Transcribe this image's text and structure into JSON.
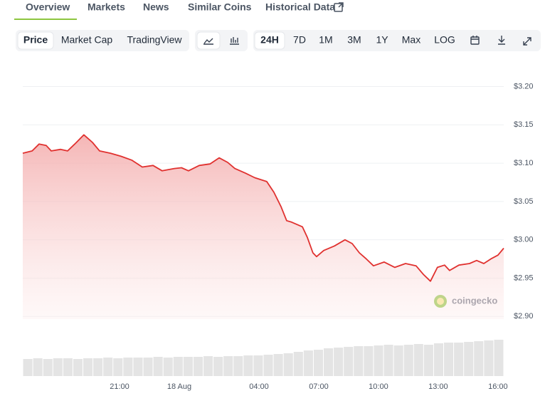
{
  "tabs": [
    "Overview",
    "Markets",
    "News",
    "Similar Coins",
    "Historical Data"
  ],
  "chart_modes": [
    "Price",
    "Market Cap",
    "TradingView"
  ],
  "ranges": [
    "24H",
    "7D",
    "1M",
    "3M",
    "1Y",
    "Max",
    "LOG"
  ],
  "watermark": "coingecko",
  "chart_data": [
    {
      "type": "line",
      "color": "#e0312f",
      "x": [
        -7.86,
        -7.39,
        -7.04,
        -6.68,
        -6.43,
        -5.96,
        -5.61,
        -5.25,
        -4.79,
        -4.36,
        -4.0,
        -3.46,
        -2.93,
        -2.39,
        -1.86,
        -1.32,
        -0.86,
        -0.25,
        0.11,
        0.46,
        1.0,
        1.54,
        2.0,
        2.43,
        2.79,
        3.32,
        3.79,
        4.39,
        4.75,
        5.11,
        5.39,
        5.64,
        6.18,
        6.43,
        6.71,
        6.89,
        7.25,
        7.79,
        8.32,
        8.68,
        9.04,
        9.39,
        9.75,
        10.29,
        10.82,
        11.36,
        11.89,
        12.25,
        12.61,
        12.96,
        13.32,
        13.57,
        14.04,
        14.57,
        14.93,
        15.29,
        15.64,
        16.0,
        16.29
      ],
      "values": [
        3.113,
        3.116,
        3.125,
        3.123,
        3.116,
        3.118,
        3.116,
        3.125,
        3.137,
        3.127,
        3.116,
        3.113,
        3.109,
        3.104,
        3.095,
        3.097,
        3.09,
        3.093,
        3.094,
        3.09,
        3.097,
        3.099,
        3.107,
        3.101,
        3.093,
        3.087,
        3.081,
        3.076,
        3.062,
        3.043,
        3.025,
        3.023,
        3.017,
        3.003,
        2.983,
        2.978,
        2.986,
        2.992,
        3.0,
        2.995,
        2.983,
        2.975,
        2.966,
        2.971,
        2.964,
        2.969,
        2.966,
        2.955,
        2.946,
        2.964,
        2.967,
        2.96,
        2.967,
        2.969,
        2.973,
        2.969,
        2.975,
        2.98,
        2.989
      ],
      "xlim": [
        -7.86,
        16.29
      ],
      "xticks": [
        {
          "value": -3,
          "label": "21:00"
        },
        {
          "value": 0,
          "label": "18 Aug"
        },
        {
          "value": 4,
          "label": "04:00"
        },
        {
          "value": 7,
          "label": "07:00"
        },
        {
          "value": 10,
          "label": "10:00"
        },
        {
          "value": 13,
          "label": "13:00"
        },
        {
          "value": 16,
          "label": "16:00"
        }
      ],
      "ylim": [
        2.89,
        3.22
      ],
      "yticks": [
        {
          "value": 2.9,
          "label": "$2.90"
        },
        {
          "value": 2.95,
          "label": "$2.95"
        },
        {
          "value": 3.0,
          "label": "$3.00"
        },
        {
          "value": 3.05,
          "label": "$3.05"
        },
        {
          "value": 3.1,
          "label": "$3.10"
        },
        {
          "value": 3.15,
          "label": "$3.15"
        },
        {
          "value": 3.2,
          "label": "$3.20"
        }
      ],
      "grid": true
    },
    {
      "type": "bar",
      "color": "#e4e4e4",
      "values": [
        24,
        25,
        24,
        25,
        25,
        24,
        25,
        25,
        26,
        25,
        26,
        26,
        26,
        27,
        26,
        27,
        27,
        27,
        28,
        27,
        28,
        28,
        29,
        29,
        30,
        31,
        32,
        34,
        36,
        37,
        39,
        40,
        41,
        42,
        42,
        43,
        44,
        43,
        44,
        45,
        44,
        46,
        47,
        47,
        48,
        49,
        50,
        51
      ],
      "ylim": [
        0,
        60
      ]
    }
  ]
}
